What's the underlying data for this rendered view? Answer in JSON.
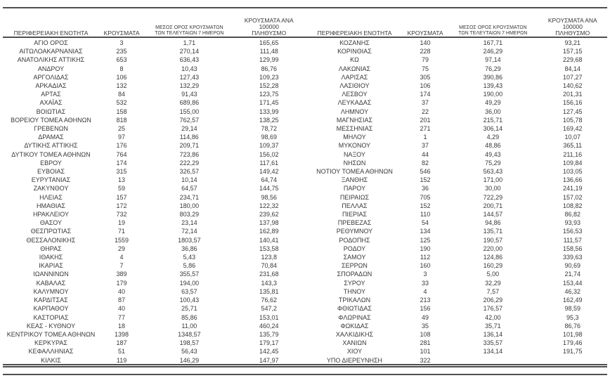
{
  "page": {
    "background_color": "#ffffff",
    "text_color": "#383838",
    "rule_color": "#4f4f4f"
  },
  "columns": {
    "region": "ΠΕΡΙΦΕΡΕΙΑΚΗ ΕΝΟΤΗΤΑ",
    "cases": "ΚΡΟΥΣΜΑΤΑ",
    "avg7_line1": "ΜΕΣΟΣ ΟΡΟΣ ΚΡΟΥΣΜΑΤΩΝ",
    "avg7_line2": "ΤΩΝ ΤΕΛΕΥΤΑΙΩΝ 7 ΗΜΕΡΩΝ",
    "per100k_line1": "ΚΡΟΥΣΜΑΤΑ ΑΝΑ 100000",
    "per100k_line2": "ΠΛΗΘΥΣΜΟ"
  },
  "left_table": {
    "rows": [
      [
        "ΑΓΙΟ ΟΡΟΣ",
        "3",
        "1,71",
        "165,65"
      ],
      [
        "ΑΙΤΩΛΟΑΚΑΡΝΑΝΙΑΣ",
        "235",
        "270,14",
        "111,48"
      ],
      [
        "ΑΝΑΤΟΛΙΚΗΣ ΑΤΤΙΚΗΣ",
        "653",
        "636,43",
        "129,99"
      ],
      [
        "ΑΝΔΡΟΥ",
        "8",
        "10,43",
        "86,76"
      ],
      [
        "ΑΡΓΟΛΙΔΑΣ",
        "106",
        "127,43",
        "109,23"
      ],
      [
        "ΑΡΚΑΔΙΑΣ",
        "132",
        "132,29",
        "152,28"
      ],
      [
        "ΑΡΤΑΣ",
        "84",
        "91,43",
        "123,75"
      ],
      [
        "ΑΧΑΪΑΣ",
        "532",
        "689,86",
        "171,45"
      ],
      [
        "ΒΟΙΩΤΙΑΣ",
        "158",
        "155,00",
        "133,99"
      ],
      [
        "ΒΟΡΕΙΟΥ ΤΟΜΕΑ ΑΘΗΝΩΝ",
        "818",
        "762,57",
        "138,25"
      ],
      [
        "ΓΡΕΒΕΝΩΝ",
        "25",
        "29,14",
        "78,72"
      ],
      [
        "ΔΡΑΜΑΣ",
        "97",
        "114,86",
        "98,69"
      ],
      [
        "ΔΥΤΙΚΗΣ ΑΤΤΙΚΗΣ",
        "176",
        "209,71",
        "109,37"
      ],
      [
        "ΔΥΤΙΚΟΥ ΤΟΜΕΑ ΑΘΗΝΩΝ",
        "764",
        "723,86",
        "156,02"
      ],
      [
        "ΕΒΡΟΥ",
        "174",
        "222,29",
        "117,61"
      ],
      [
        "ΕΥΒΟΙΑΣ",
        "315",
        "326,57",
        "149,42"
      ],
      [
        "ΕΥΡΥΤΑΝΙΑΣ",
        "13",
        "10,14",
        "64,74"
      ],
      [
        "ΖΑΚΥΝΘΟΥ",
        "59",
        "64,57",
        "144,75"
      ],
      [
        "ΗΛΕΙΑΣ",
        "157",
        "234,71",
        "98,56"
      ],
      [
        "ΗΜΑΘΙΑΣ",
        "172",
        "180,00",
        "122,32"
      ],
      [
        "ΗΡΑΚΛΕΙΟΥ",
        "732",
        "803,29",
        "239,62"
      ],
      [
        "ΘΑΣΟΥ",
        "19",
        "23,14",
        "137,98"
      ],
      [
        "ΘΕΣΠΡΩΤΙΑΣ",
        "71",
        "72,14",
        "162,89"
      ],
      [
        "ΘΕΣΣΑΛΟΝΙΚΗΣ",
        "1559",
        "1803,57",
        "140,41"
      ],
      [
        "ΘΗΡΑΣ",
        "29",
        "36,86",
        "153,58"
      ],
      [
        "ΙΘΑΚΗΣ",
        "4",
        "5,43",
        "123,8"
      ],
      [
        "ΙΚΑΡΙΑΣ",
        "7",
        "5,86",
        "70,84"
      ],
      [
        "ΙΩΑΝΝΙΝΩΝ",
        "389",
        "355,57",
        "231,68"
      ],
      [
        "ΚΑΒΑΛΑΣ",
        "179",
        "194,00",
        "143,3"
      ],
      [
        "ΚΑΛΥΜΝΟΥ",
        "40",
        "63,57",
        "135,81"
      ],
      [
        "ΚΑΡΔΙΤΣΑΣ",
        "87",
        "100,43",
        "76,62"
      ],
      [
        "ΚΑΡΠΑΘΟΥ",
        "40",
        "25,71",
        "547,2"
      ],
      [
        "ΚΑΣΤΟΡΙΑΣ",
        "77",
        "85,86",
        "153,01"
      ],
      [
        "ΚΕΑΣ - ΚΥΘΝΟΥ",
        "18",
        "11,00",
        "460,24"
      ],
      [
        "ΚΕΝΤΡΙΚΟΥ ΤΟΜΕΑ ΑΘΗΝΩΝ",
        "1398",
        "1348,57",
        "135,79"
      ],
      [
        "ΚΕΡΚΥΡΑΣ",
        "187",
        "198,57",
        "179,17"
      ],
      [
        "ΚΕΦΑΛΛΗΝΙΑΣ",
        "51",
        "56,43",
        "142,45"
      ],
      [
        "ΚΙΛΚΙΣ",
        "119",
        "146,29",
        "147,97"
      ]
    ]
  },
  "right_table": {
    "rows": [
      [
        "ΚΟΖΑΝΗΣ",
        "140",
        "167,71",
        "93,21"
      ],
      [
        "ΚΟΡΙΝΘΙΑΣ",
        "228",
        "246,29",
        "157,15"
      ],
      [
        "ΚΩ",
        "79",
        "97,14",
        "229,68"
      ],
      [
        "ΛΑΚΩΝΙΑΣ",
        "75",
        "76,29",
        "84,14"
      ],
      [
        "ΛΑΡΙΣΑΣ",
        "305",
        "390,86",
        "107,27"
      ],
      [
        "ΛΑΣΙΘΙΟΥ",
        "106",
        "139,43",
        "140,62"
      ],
      [
        "ΛΕΣΒΟΥ",
        "174",
        "190,00",
        "201,31"
      ],
      [
        "ΛΕΥΚΑΔΑΣ",
        "37",
        "49,29",
        "156,16"
      ],
      [
        "ΛΗΜΝΟΥ",
        "22",
        "36,00",
        "127,45"
      ],
      [
        "ΜΑΓΝΗΣΙΑΣ",
        "201",
        "215,71",
        "105,78"
      ],
      [
        "ΜΕΣΣΗΝΙΑΣ",
        "271",
        "306,14",
        "169,42"
      ],
      [
        "ΜΗΛΟΥ",
        "1",
        "4,29",
        "10,07"
      ],
      [
        "ΜΥΚΟΝΟΥ",
        "37",
        "48,86",
        "365,11"
      ],
      [
        "ΝΑΞΟΥ",
        "44",
        "49,43",
        "211,16"
      ],
      [
        "ΝΗΣΩΝ",
        "82",
        "75,29",
        "109,84"
      ],
      [
        "ΝΟΤΙΟΥ ΤΟΜΕΑ ΑΘΗΝΩΝ",
        "546",
        "563,43",
        "103,05"
      ],
      [
        "ΞΑΝΘΗΣ",
        "152",
        "171,00",
        "136,66"
      ],
      [
        "ΠΑΡΟΥ",
        "36",
        "30,00",
        "241,19"
      ],
      [
        "ΠΕΙΡΑΙΩΣ",
        "705",
        "722,29",
        "157,02"
      ],
      [
        "ΠΕΛΛΑΣ",
        "152",
        "200,71",
        "108,82"
      ],
      [
        "ΠΙΕΡΙΑΣ",
        "110",
        "144,57",
        "86,82"
      ],
      [
        "ΠΡΕΒΕΖΑΣ",
        "54",
        "94,86",
        "93,93"
      ],
      [
        "ΡΕΘΥΜΝΟΥ",
        "134",
        "135,71",
        "156,53"
      ],
      [
        "ΡΟΔΟΠΗΣ",
        "125",
        "190,57",
        "111,57"
      ],
      [
        "ΡΟΔΟΥ",
        "190",
        "220,00",
        "158,56"
      ],
      [
        "ΣΑΜΟΥ",
        "112",
        "124,86",
        "339,63"
      ],
      [
        "ΣΕΡΡΩΝ",
        "160",
        "160,29",
        "90,69"
      ],
      [
        "ΣΠΟΡΑΔΩΝ",
        "3",
        "5,00",
        "21,74"
      ],
      [
        "ΣΥΡΟΥ",
        "33",
        "32,29",
        "153,44"
      ],
      [
        "ΤΗΝΟΥ",
        "4",
        "7,57",
        "46,32"
      ],
      [
        "ΤΡΙΚΑΛΩΝ",
        "213",
        "206,29",
        "162,49"
      ],
      [
        "ΦΘΙΩΤΙΔΑΣ",
        "156",
        "176,57",
        "98,59"
      ],
      [
        "ΦΛΩΡΙΝΑΣ",
        "49",
        "42,00",
        "95,3"
      ],
      [
        "ΦΩΚΙΔΑΣ",
        "35",
        "35,71",
        "86,76"
      ],
      [
        "ΧΑΛΚΙΔΙΚΗΣ",
        "108",
        "136,14",
        "101,98"
      ],
      [
        "ΧΑΝΙΩΝ",
        "281",
        "335,57",
        "179,46"
      ],
      [
        "ΧΙΟΥ",
        "101",
        "134,14",
        "191,75"
      ],
      [
        "ΥΠΟ ΔΙΕΡΕΥΝΗΣΗ",
        "322",
        "",
        ""
      ]
    ]
  }
}
